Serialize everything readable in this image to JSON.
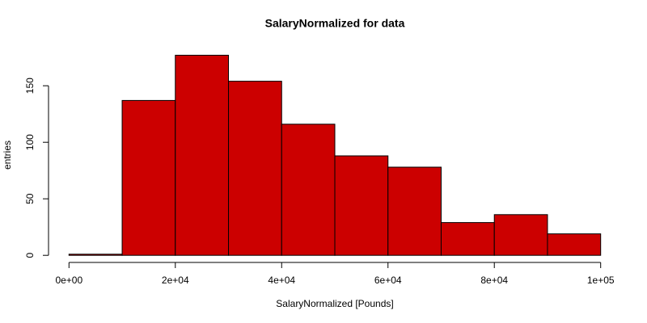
{
  "chart_data": {
    "type": "histogram",
    "title": "SalaryNormalized for data",
    "x_label": "SalaryNormalized [Pounds]",
    "y_label": "entries",
    "bins": [
      0,
      10000,
      20000,
      30000,
      40000,
      50000,
      60000,
      70000,
      80000,
      90000,
      100000
    ],
    "values": [
      1,
      137,
      177,
      154,
      116,
      88,
      78,
      29,
      36,
      19
    ],
    "color": "#cc0000",
    "xlim": [
      -4000,
      104000
    ],
    "xticks": [
      {
        "value": 0,
        "label": "0e+00"
      },
      {
        "value": 20000,
        "label": "2e+04"
      },
      {
        "value": 40000,
        "label": "4e+04"
      },
      {
        "value": 60000,
        "label": "6e+04"
      },
      {
        "value": 80000,
        "label": "8e+04"
      },
      {
        "value": 100000,
        "label": "1e+05"
      }
    ],
    "ylim": [
      -7,
      184
    ],
    "yticks": [
      0,
      50,
      100,
      150
    ]
  }
}
